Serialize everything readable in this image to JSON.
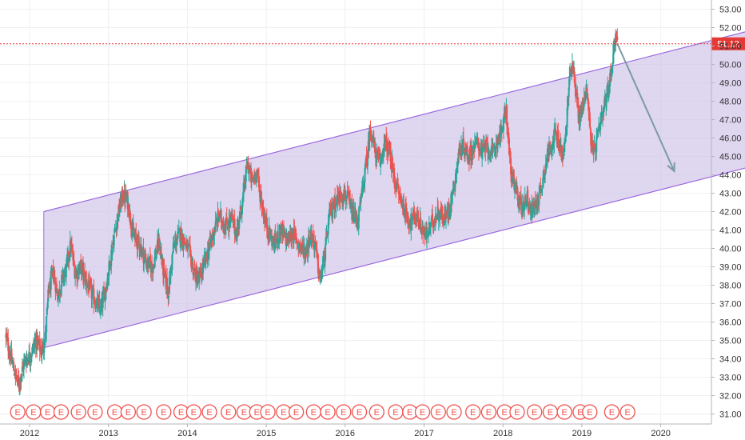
{
  "chart_data": {
    "type": "candlestick",
    "title": "",
    "xlabel": "",
    "ylabel": "",
    "ylim": [
      30.5,
      53.2
    ],
    "xlim": [
      2011.9,
      2020.5
    ],
    "y_ticks": [
      "31.00",
      "32.00",
      "33.00",
      "34.00",
      "35.00",
      "36.00",
      "37.00",
      "38.00",
      "39.00",
      "40.00",
      "41.00",
      "42.00",
      "43.00",
      "44.00",
      "45.00",
      "46.00",
      "47.00",
      "48.00",
      "49.00",
      "50.00",
      "51.00",
      "52.00",
      "53.00"
    ],
    "x_ticks": [
      {
        "label": "2012",
        "x": 2012.0
      },
      {
        "label": "2013",
        "x": 2013.0
      },
      {
        "label": "2014",
        "x": 2014.0
      },
      {
        "label": "2015",
        "x": 2015.0
      },
      {
        "label": "2016",
        "x": 2016.0
      },
      {
        "label": "2017",
        "x": 2017.0
      },
      {
        "label": "2018",
        "x": 2018.0
      },
      {
        "label": "2019",
        "x": 2019.0
      },
      {
        "label": "2020",
        "x": 2020.0
      }
    ],
    "grid": true,
    "last_price": {
      "label": "51.12",
      "value": 51.12,
      "color": "#e53935"
    },
    "colors": {
      "up": "#26a69a",
      "down": "#ef5350",
      "channel_fill": "#d1c4e9",
      "channel_line": "#9c6ade",
      "arrow": "#7b9aa6",
      "grid": "#eef0f3",
      "earnings": "#ef5350"
    },
    "path": [
      [
        2011.7,
        35.2
      ],
      [
        2011.8,
        33.4
      ],
      [
        2011.86,
        32.6
      ],
      [
        2011.93,
        33.8
      ],
      [
        2012.02,
        34.3
      ],
      [
        2012.08,
        35.0
      ],
      [
        2012.15,
        34.4
      ],
      [
        2012.2,
        35.2
      ],
      [
        2012.24,
        37.6
      ],
      [
        2012.3,
        38.7
      ],
      [
        2012.36,
        37.4
      ],
      [
        2012.42,
        38.4
      ],
      [
        2012.46,
        38.8
      ],
      [
        2012.52,
        40.2
      ],
      [
        2012.58,
        38.6
      ],
      [
        2012.65,
        39.0
      ],
      [
        2012.72,
        38.2
      ],
      [
        2012.8,
        37.4
      ],
      [
        2012.9,
        36.6
      ],
      [
        2012.98,
        38.2
      ],
      [
        2013.06,
        40.4
      ],
      [
        2013.12,
        41.8
      ],
      [
        2013.18,
        42.9
      ],
      [
        2013.24,
        42.6
      ],
      [
        2013.32,
        40.6
      ],
      [
        2013.4,
        40.2
      ],
      [
        2013.48,
        39.2
      ],
      [
        2013.56,
        39.0
      ],
      [
        2013.64,
        40.4
      ],
      [
        2013.7,
        38.6
      ],
      [
        2013.76,
        37.6
      ],
      [
        2013.82,
        40.0
      ],
      [
        2013.9,
        40.8
      ],
      [
        2013.96,
        40.4
      ],
      [
        2014.02,
        39.8
      ],
      [
        2014.08,
        38.8
      ],
      [
        2014.14,
        38.2
      ],
      [
        2014.22,
        39.2
      ],
      [
        2014.3,
        40.4
      ],
      [
        2014.4,
        41.8
      ],
      [
        2014.48,
        41.2
      ],
      [
        2014.56,
        41.6
      ],
      [
        2014.62,
        40.8
      ],
      [
        2014.7,
        42.6
      ],
      [
        2014.76,
        44.6
      ],
      [
        2014.82,
        43.6
      ],
      [
        2014.88,
        44.2
      ],
      [
        2014.92,
        43.0
      ],
      [
        2014.98,
        41.6
      ],
      [
        2015.04,
        40.8
      ],
      [
        2015.1,
        40.2
      ],
      [
        2015.18,
        41.0
      ],
      [
        2015.26,
        40.4
      ],
      [
        2015.34,
        40.8
      ],
      [
        2015.42,
        40.2
      ],
      [
        2015.5,
        39.8
      ],
      [
        2015.56,
        40.8
      ],
      [
        2015.62,
        40.2
      ],
      [
        2015.68,
        38.2
      ],
      [
        2015.74,
        39.6
      ],
      [
        2015.8,
        41.8
      ],
      [
        2015.88,
        42.6
      ],
      [
        2015.96,
        43.0
      ],
      [
        2016.02,
        42.8
      ],
      [
        2016.1,
        41.8
      ],
      [
        2016.16,
        41.4
      ],
      [
        2016.22,
        43.2
      ],
      [
        2016.28,
        45.0
      ],
      [
        2016.32,
        46.6
      ],
      [
        2016.38,
        45.2
      ],
      [
        2016.44,
        44.6
      ],
      [
        2016.5,
        45.8
      ],
      [
        2016.56,
        45.2
      ],
      [
        2016.62,
        43.8
      ],
      [
        2016.68,
        43.0
      ],
      [
        2016.76,
        42.0
      ],
      [
        2016.82,
        41.4
      ],
      [
        2016.9,
        41.8
      ],
      [
        2016.96,
        41.2
      ],
      [
        2017.02,
        40.6
      ],
      [
        2017.1,
        41.4
      ],
      [
        2017.18,
        42.0
      ],
      [
        2017.26,
        41.6
      ],
      [
        2017.32,
        42.2
      ],
      [
        2017.38,
        43.4
      ],
      [
        2017.44,
        45.2
      ],
      [
        2017.5,
        45.6
      ],
      [
        2017.56,
        45.0
      ],
      [
        2017.62,
        45.4
      ],
      [
        2017.68,
        45.8
      ],
      [
        2017.74,
        45.2
      ],
      [
        2017.8,
        45.6
      ],
      [
        2017.86,
        45.0
      ],
      [
        2017.92,
        45.8
      ],
      [
        2018.0,
        46.6
      ],
      [
        2018.04,
        47.6
      ],
      [
        2018.08,
        45.2
      ],
      [
        2018.12,
        43.6
      ],
      [
        2018.18,
        43.0
      ],
      [
        2018.24,
        42.2
      ],
      [
        2018.3,
        42.8
      ],
      [
        2018.36,
        42.0
      ],
      [
        2018.42,
        42.4
      ],
      [
        2018.48,
        43.2
      ],
      [
        2018.54,
        44.6
      ],
      [
        2018.6,
        45.6
      ],
      [
        2018.66,
        46.2
      ],
      [
        2018.72,
        45.6
      ],
      [
        2018.76,
        44.8
      ],
      [
        2018.8,
        46.4
      ],
      [
        2018.84,
        49.2
      ],
      [
        2018.88,
        50.2
      ],
      [
        2018.92,
        48.8
      ],
      [
        2018.96,
        47.0
      ],
      [
        2019.02,
        47.8
      ],
      [
        2019.06,
        49.0
      ],
      [
        2019.1,
        46.6
      ],
      [
        2019.14,
        45.0
      ],
      [
        2019.18,
        45.6
      ],
      [
        2019.24,
        46.8
      ],
      [
        2019.3,
        48.0
      ],
      [
        2019.36,
        49.2
      ],
      [
        2019.4,
        50.8
      ],
      [
        2019.42,
        51.6
      ],
      [
        2019.45,
        51.12
      ]
    ],
    "candles": [],
    "channel": {
      "x1": 2012.18,
      "x2": 2021.1,
      "lower1": 34.6,
      "lower2": 44.4,
      "upper1": 42.0,
      "upper2": 51.8
    },
    "channel_fill_end_x": 2021.1,
    "arrow": {
      "x1": 2019.45,
      "y1": 51.12,
      "x2": 2020.17,
      "y2": 44.2
    },
    "earnings_markers": {
      "label": "E",
      "positions": [
        2011.85,
        2012.05,
        2012.23,
        2012.4,
        2012.62,
        2012.83,
        2013.08,
        2013.25,
        2013.45,
        2013.7,
        2013.92,
        2014.08,
        2014.28,
        2014.52,
        2014.72,
        2014.88,
        2015.02,
        2015.22,
        2015.38,
        2015.6,
        2015.78,
        2015.98,
        2016.18,
        2016.4,
        2016.64,
        2016.82,
        2016.98,
        2017.18,
        2017.38,
        2017.62,
        2017.82,
        2018.02,
        2018.18,
        2018.4,
        2018.6,
        2018.78,
        2018.98,
        2019.1,
        2019.38,
        2019.58
      ]
    },
    "y_axis": {
      "spacing": 23.0,
      "lowest": 31.0
    }
  }
}
